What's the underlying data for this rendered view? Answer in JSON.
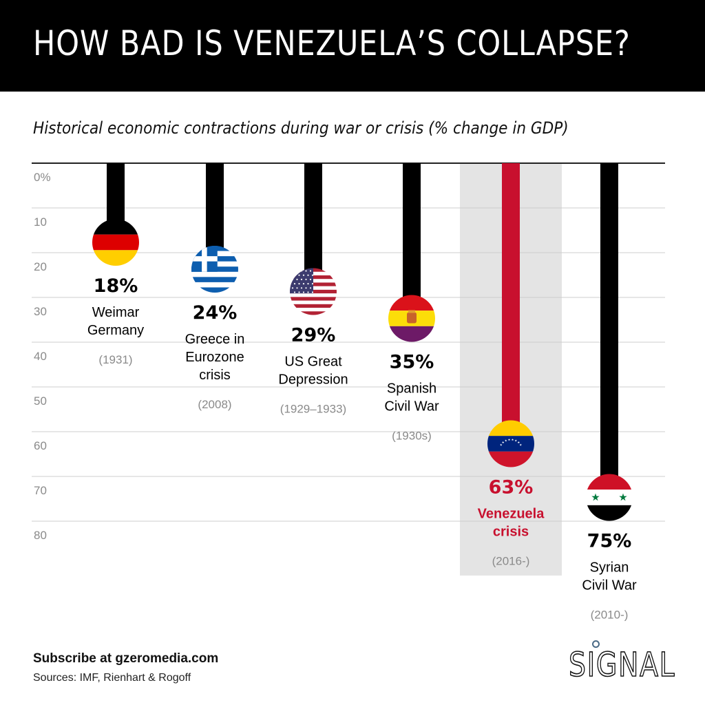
{
  "header": {
    "title": "HOW BAD IS VENEZUELA’S COLLAPSE?"
  },
  "footer": {
    "subscribe": "Subscribe at gzeromedia.com",
    "sources": "Sources: IMF, Rienhart & Rogoff",
    "logo": "SIGNAL"
  },
  "colors": {
    "bar": "#000000",
    "highlight_bar": "#c8102e",
    "highlight_bg": "#e4e4e4",
    "gridline": "#cccccc",
    "tick_label": "#8a8a8a",
    "year_label": "#8a8a8a"
  },
  "chart_data": {
    "type": "bar",
    "title": "HOW BAD IS VENEZUELA’S COLLAPSE?",
    "subtitle": "Historical economic contractions during war or crisis (% change in GDP)",
    "xlabel": "",
    "ylabel": "% change in GDP",
    "ylim": [
      0,
      80
    ],
    "yticks": [
      "0%",
      "10",
      "20",
      "30",
      "40",
      "50",
      "60",
      "70",
      "80"
    ],
    "grid": true,
    "orientation": "downward",
    "categories": [
      "Weimar Germany",
      "Greece in Eurozone crisis",
      "US Great Depression",
      "Spanish Civil War",
      "Venezuela crisis",
      "Syrian Civil War"
    ],
    "values": [
      18,
      24,
      29,
      35,
      63,
      75
    ],
    "items": [
      {
        "value": 18,
        "value_label": "18%",
        "name_lines": [
          "Weimar",
          "Germany"
        ],
        "years": "(1931)",
        "flag": "germany-flag",
        "highlight": false
      },
      {
        "value": 24,
        "value_label": "24%",
        "name_lines": [
          "Greece in",
          "Eurozone",
          "crisis"
        ],
        "years": "(2008)",
        "flag": "greece-flag",
        "highlight": false
      },
      {
        "value": 29,
        "value_label": "29%",
        "name_lines": [
          "US Great",
          "Depression"
        ],
        "years": "(1929–1933)",
        "flag": "usa-flag",
        "highlight": false
      },
      {
        "value": 35,
        "value_label": "35%",
        "name_lines": [
          "Spanish",
          "Civil War"
        ],
        "years": "(1930s)",
        "flag": "spanish-republic-flag",
        "highlight": false
      },
      {
        "value": 63,
        "value_label": "63%",
        "name_lines": [
          "Venezuela",
          "crisis"
        ],
        "years": "(2016-)",
        "flag": "venezuela-flag",
        "highlight": true
      },
      {
        "value": 75,
        "value_label": "75%",
        "name_lines": [
          "Syrian",
          "Civil War"
        ],
        "years": "(2010-)",
        "flag": "syria-flag",
        "highlight": false
      }
    ]
  }
}
